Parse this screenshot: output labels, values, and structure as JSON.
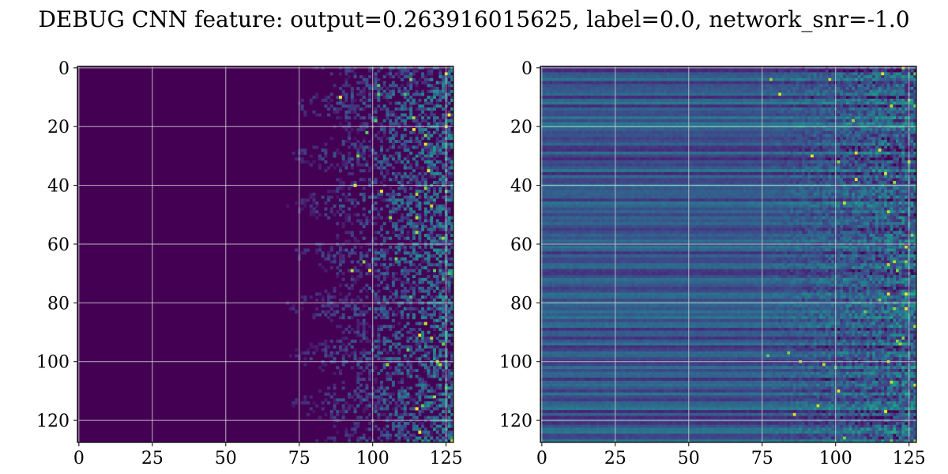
{
  "figure": {
    "title": "DEBUG CNN feature: output=0.263916015625, label=0.0, network_snr=-1.0"
  },
  "chart_data": [
    {
      "type": "heatmap",
      "title": "",
      "xlabel": "",
      "ylabel": "",
      "colormap": "viridis",
      "rows": 128,
      "cols": 128,
      "xlim": [
        -0.5,
        127.5
      ],
      "ylim": [
        127.5,
        -0.5
      ],
      "xticks": [
        0,
        25,
        50,
        75,
        100,
        125
      ],
      "xtick_labels": [
        "0",
        "25",
        "50",
        "75",
        "100",
        "125"
      ],
      "yticks": [
        0,
        20,
        40,
        60,
        80,
        100,
        120
      ],
      "ytick_labels": [
        "0",
        "20",
        "40",
        "60",
        "80",
        "100",
        "120"
      ],
      "grid": true,
      "description_of_values": "Mostly near-zero (dark purple) for columns 0-80; sparse noisy activations increasing toward columns 90-127 with occasional bright yellow-green peaks"
    },
    {
      "type": "heatmap",
      "title": "",
      "xlabel": "",
      "ylabel": "",
      "colormap": "viridis",
      "rows": 128,
      "cols": 128,
      "xlim": [
        -0.5,
        127.5
      ],
      "ylim": [
        127.5,
        -0.5
      ],
      "xticks": [
        0,
        25,
        50,
        75,
        100,
        125
      ],
      "xtick_labels": [
        "0",
        "25",
        "50",
        "75",
        "100",
        "125"
      ],
      "yticks": [
        0,
        20,
        40,
        60,
        80,
        100,
        120
      ],
      "ytick_labels": [
        "0",
        "20",
        "40",
        "60",
        "80",
        "100",
        "120"
      ],
      "grid": true,
      "description_of_values": "Horizontal banded structure (row-wise intensity) across all columns with medium blue/teal values; increasing noise and green/yellow speckles toward columns 80-127"
    }
  ]
}
